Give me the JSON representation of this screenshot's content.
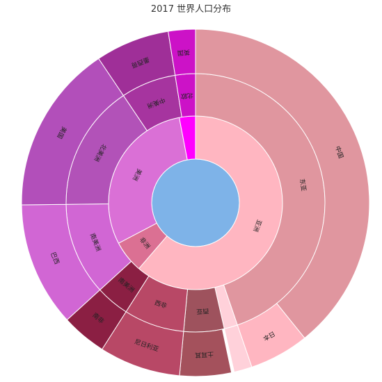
{
  "chart_data": {
    "type": "sunburst",
    "title": "2017 世界人口分布",
    "root": {
      "color": "#7eb3e8"
    },
    "rings": [
      [
        {
          "label": "亚洲",
          "value": 61.3,
          "color": "#ffb6c1"
        },
        {
          "label": "非洲",
          "value": 6.0,
          "color": "#db7093"
        },
        {
          "label": "美洲",
          "value": 29.7,
          "color": "#da70d6"
        },
        {
          "label": "",
          "value": 3.0,
          "color": "#ff00ff"
        }
      ],
      [
        {
          "label": "东亚",
          "value": 53.3,
          "color": "#e0969f"
        },
        {
          "label": "",
          "value": 2.0,
          "color": "#ffd1da"
        },
        {
          "label": "西亚",
          "value": 6.0,
          "color": "#9e525d"
        },
        {
          "label": "西非",
          "value": 9.0,
          "color": "#b84866"
        },
        {
          "label": "南美洲",
          "value": 5.0,
          "color": "#8b1f43"
        },
        {
          "label": "南美洲",
          "value": 13.8,
          "color": "#d166d4"
        },
        {
          "label": "北美洲",
          "value": 18.8,
          "color": "#b252b8"
        },
        {
          "label": "中美洲",
          "value": 8.2,
          "color": "#a6349f"
        },
        {
          "label": "北欧",
          "value": 3.0,
          "color": "#cc12c7"
        }
      ],
      [
        {
          "label": "中国",
          "value": 46.7,
          "color": "#e0969f"
        },
        {
          "label": "日本",
          "value": 6.6,
          "color": "#ffb6c1"
        },
        {
          "label": "",
          "value": 2.0,
          "color": "#ffd1da"
        },
        {
          "label": "",
          "value": 0.3,
          "color": "#ffffff"
        },
        {
          "label": "土耳其",
          "value": 5.7,
          "color": "#a4515c"
        },
        {
          "label": "尼日利亚",
          "value": 9.0,
          "color": "#b84866"
        },
        {
          "label": "南非",
          "value": 5.0,
          "color": "#8b1f43"
        },
        {
          "label": "巴西",
          "value": 13.8,
          "color": "#d166d4"
        },
        {
          "label": "美国",
          "value": 18.8,
          "color": "#b24fba"
        },
        {
          "label": "墨西哥",
          "value": 8.2,
          "color": "#9f2f98"
        },
        {
          "label": "英国",
          "value": 3.0,
          "color": "#cc12c7"
        }
      ]
    ]
  }
}
